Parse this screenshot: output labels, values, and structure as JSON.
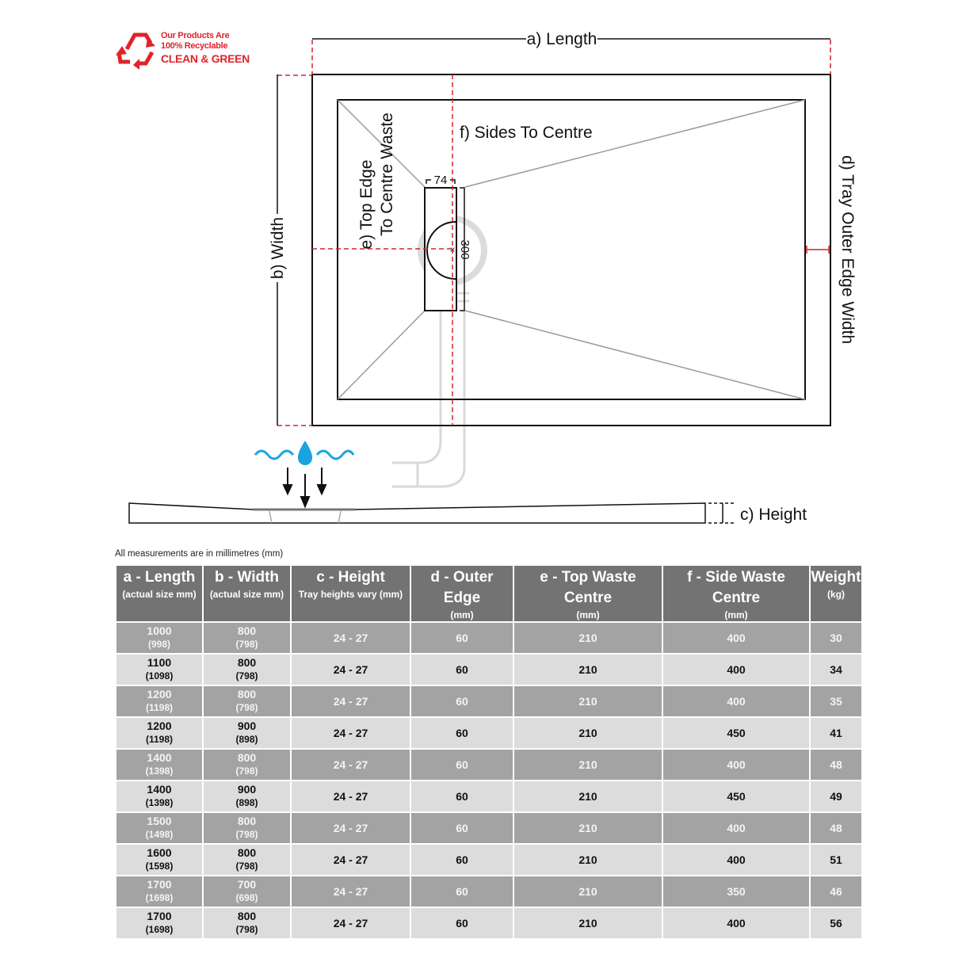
{
  "logo": {
    "line1": "Our Products Are",
    "line2": "100% Recyclable",
    "line3": "CLEAN & GREEN",
    "icon": "recycle-icon",
    "color": "#e1222a"
  },
  "diagram": {
    "length_label": "a) Length",
    "width_label": "b) Width",
    "height_label": "c) Height",
    "outer_edge_label": "d) Tray Outer Edge Width",
    "top_edge_label_1": "e) Top Edge",
    "top_edge_label_2": "To Centre Waste",
    "sides_label": "f) Sides To Centre",
    "waste_width": "74",
    "waste_length": "300",
    "dimension_color": "#d2232a",
    "water_color": "#1aa3e0"
  },
  "note": "All measurements are in millimetres (mm)",
  "table": {
    "headers": [
      {
        "title": "a - Length",
        "sub": "(actual size mm)"
      },
      {
        "title": "b - Width",
        "sub": "(actual size mm)"
      },
      {
        "title": "c - Height",
        "sub": "Tray heights vary (mm)"
      },
      {
        "title": "d - Outer Edge",
        "sub": "(mm)"
      },
      {
        "title": "e - Top Waste Centre",
        "sub": "(mm)"
      },
      {
        "title": "f - Side Waste Centre",
        "sub": "(mm)"
      },
      {
        "title": "Weight",
        "sub": "(kg)"
      }
    ],
    "rows": [
      {
        "length": "1000",
        "length_actual": "(998)",
        "width": "800",
        "width_actual": "(798)",
        "height": "24 - 27",
        "outer": "60",
        "top": "210",
        "side": "400",
        "weight": "30"
      },
      {
        "length": "1100",
        "length_actual": "(1098)",
        "width": "800",
        "width_actual": "(798)",
        "height": "24 - 27",
        "outer": "60",
        "top": "210",
        "side": "400",
        "weight": "34"
      },
      {
        "length": "1200",
        "length_actual": "(1198)",
        "width": "800",
        "width_actual": "(798)",
        "height": "24 - 27",
        "outer": "60",
        "top": "210",
        "side": "400",
        "weight": "35"
      },
      {
        "length": "1200",
        "length_actual": "(1198)",
        "width": "900",
        "width_actual": "(898)",
        "height": "24 - 27",
        "outer": "60",
        "top": "210",
        "side": "450",
        "weight": "41"
      },
      {
        "length": "1400",
        "length_actual": "(1398)",
        "width": "800",
        "width_actual": "(798)",
        "height": "24 - 27",
        "outer": "60",
        "top": "210",
        "side": "400",
        "weight": "48"
      },
      {
        "length": "1400",
        "length_actual": "(1398)",
        "width": "900",
        "width_actual": "(898)",
        "height": "24 - 27",
        "outer": "60",
        "top": "210",
        "side": "450",
        "weight": "49"
      },
      {
        "length": "1500",
        "length_actual": "(1498)",
        "width": "800",
        "width_actual": "(798)",
        "height": "24 - 27",
        "outer": "60",
        "top": "210",
        "side": "400",
        "weight": "48"
      },
      {
        "length": "1600",
        "length_actual": "(1598)",
        "width": "800",
        "width_actual": "(798)",
        "height": "24 - 27",
        "outer": "60",
        "top": "210",
        "side": "400",
        "weight": "51"
      },
      {
        "length": "1700",
        "length_actual": "(1698)",
        "width": "700",
        "width_actual": "(698)",
        "height": "24 - 27",
        "outer": "60",
        "top": "210",
        "side": "350",
        "weight": "46"
      },
      {
        "length": "1700",
        "length_actual": "(1698)",
        "width": "800",
        "width_actual": "(798)",
        "height": "24 - 27",
        "outer": "60",
        "top": "210",
        "side": "400",
        "weight": "56"
      }
    ]
  }
}
